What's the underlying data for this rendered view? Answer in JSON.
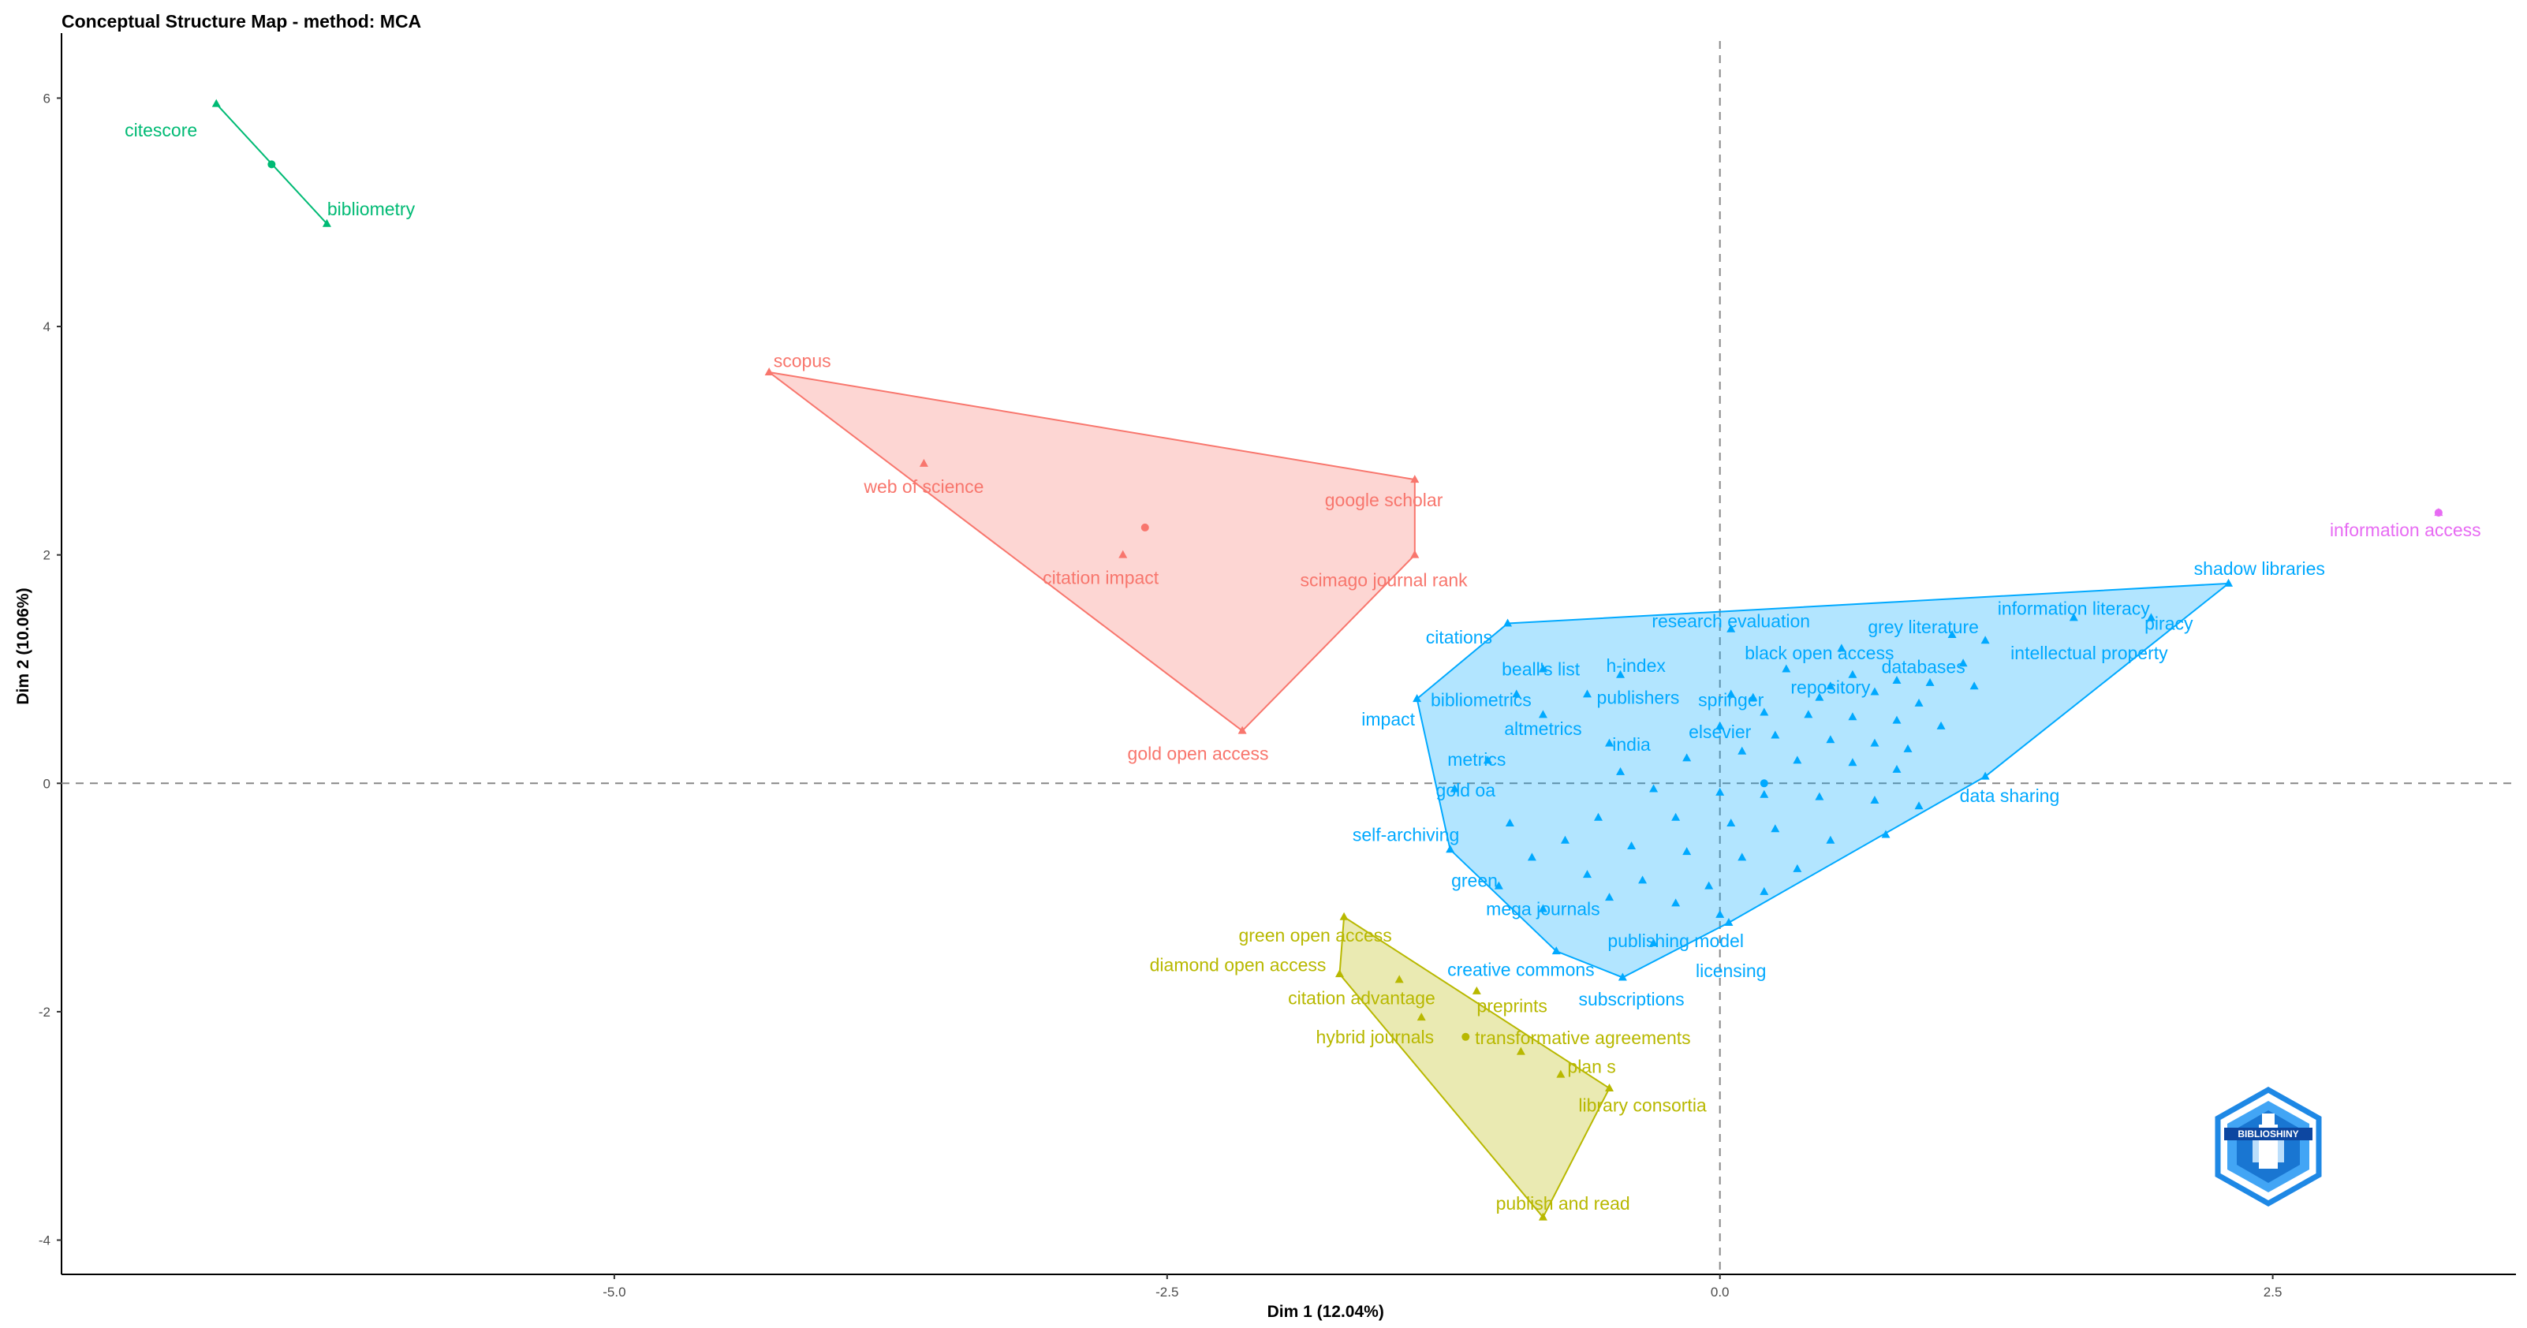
{
  "title": "Conceptual Structure Map - method: MCA",
  "chart_data": {
    "type": "scatter",
    "title": "Conceptual Structure Map - method: MCA",
    "xlabel": "Dim 1 (12.04%)",
    "ylabel": "Dim 2 (10.06%)",
    "xlim": [
      -7.5,
      3.6
    ],
    "ylim": [
      -4.3,
      6.5
    ],
    "xticks": [
      -5.0,
      -2.5,
      0.0,
      2.5
    ],
    "xtick_labels": [
      "-5.0",
      "-2.5",
      "0.0",
      "2.5"
    ],
    "yticks": [
      -4,
      -2,
      0,
      2,
      4,
      6
    ],
    "ytick_labels": [
      "-4",
      "-2",
      "0",
      "2",
      "4",
      "6"
    ],
    "reference_lines": {
      "x": 0,
      "y": 0
    },
    "grid": false,
    "legend": "none",
    "clusters": [
      {
        "color": "#00BA74",
        "fill": false,
        "hull": [
          [
            -6.8,
            5.95
          ],
          [
            -6.3,
            4.9
          ]
        ],
        "centroid": [
          -6.55,
          5.42
        ],
        "points": [
          {
            "label": "citescore",
            "x": -6.8,
            "y": 5.95,
            "lx": -7.05,
            "ly": 5.72
          },
          {
            "label": "bibliometry",
            "x": -6.3,
            "y": 4.9,
            "lx": -6.1,
            "ly": 5.03
          }
        ]
      },
      {
        "color": "#F8766D",
        "fill": true,
        "hull": [
          [
            -4.3,
            3.6
          ],
          [
            -1.38,
            2.66
          ],
          [
            -1.38,
            2.0
          ],
          [
            -2.16,
            0.46
          ]
        ],
        "centroid": [
          -2.6,
          2.24
        ],
        "points": [
          {
            "label": "scopus",
            "x": -4.3,
            "y": 3.6,
            "lx": -4.15,
            "ly": 3.7
          },
          {
            "label": "web of science",
            "x": -3.6,
            "y": 2.8,
            "lx": -3.6,
            "ly": 2.6
          },
          {
            "label": "google scholar",
            "x": -1.38,
            "y": 2.66,
            "lx": -1.52,
            "ly": 2.48
          },
          {
            "label": "citation impact",
            "x": -2.7,
            "y": 2.0,
            "lx": -2.8,
            "ly": 1.8
          },
          {
            "label": "scimago journal rank",
            "x": -1.38,
            "y": 2.0,
            "lx": -1.52,
            "ly": 1.78
          },
          {
            "label": "gold open access",
            "x": -2.16,
            "y": 0.46,
            "lx": -2.36,
            "ly": 0.26
          }
        ]
      },
      {
        "color": "#00A9FF",
        "fill": true,
        "hull": [
          [
            -0.96,
            1.4
          ],
          [
            2.3,
            1.75
          ],
          [
            1.2,
            0.06
          ],
          [
            0.04,
            -1.22
          ],
          [
            -0.44,
            -1.7
          ],
          [
            -0.74,
            -1.47
          ],
          [
            -1.22,
            -0.58
          ],
          [
            -1.37,
            0.74
          ]
        ],
        "centroid": [
          0.2,
          0.0
        ],
        "points": [
          {
            "label": "shadow libraries",
            "x": 2.3,
            "y": 1.75,
            "lx": 2.44,
            "ly": 1.88
          },
          {
            "label": "information literacy",
            "x": 1.6,
            "y": 1.45,
            "lx": 1.6,
            "ly": 1.53
          },
          {
            "label": "piracy",
            "x": 1.95,
            "y": 1.45,
            "lx": 2.03,
            "ly": 1.4
          },
          {
            "label": "grey literature",
            "x": 1.05,
            "y": 1.3,
            "lx": 0.92,
            "ly": 1.37
          },
          {
            "label": "intellectual property",
            "x": 1.2,
            "y": 1.25,
            "lx": 1.67,
            "ly": 1.14
          },
          {
            "label": "research evaluation",
            "x": 0.05,
            "y": 1.35,
            "lx": 0.05,
            "ly": 1.42
          },
          {
            "label": "black open access",
            "x": 0.55,
            "y": 1.18,
            "lx": 0.45,
            "ly": 1.14
          },
          {
            "label": "databases",
            "x": 1.1,
            "y": 1.05,
            "lx": 0.92,
            "ly": 1.02
          },
          {
            "label": "citations",
            "x": -0.96,
            "y": 1.4,
            "lx": -1.18,
            "ly": 1.28
          },
          {
            "label": "beall's list",
            "x": -0.8,
            "y": 1.0,
            "lx": -0.81,
            "ly": 1.0
          },
          {
            "label": "h-index",
            "x": -0.45,
            "y": 0.95,
            "lx": -0.38,
            "ly": 1.03
          },
          {
            "label": "repository",
            "x": 0.5,
            "y": 0.85,
            "lx": 0.5,
            "ly": 0.84
          },
          {
            "label": "bibliometrics",
            "x": -0.92,
            "y": 0.78,
            "lx": -1.08,
            "ly": 0.73
          },
          {
            "label": "publishers",
            "x": -0.6,
            "y": 0.78,
            "lx": -0.37,
            "ly": 0.75
          },
          {
            "label": "springer",
            "x": 0.05,
            "y": 0.78,
            "lx": 0.05,
            "ly": 0.73
          },
          {
            "label": "impact",
            "x": -1.37,
            "y": 0.74,
            "lx": -1.5,
            "ly": 0.56
          },
          {
            "label": "altmetrics",
            "x": -0.8,
            "y": 0.6,
            "lx": -0.8,
            "ly": 0.48
          },
          {
            "label": "elsevier",
            "x": 0.0,
            "y": 0.5,
            "lx": 0.0,
            "ly": 0.45
          },
          {
            "label": "india",
            "x": -0.5,
            "y": 0.35,
            "lx": -0.4,
            "ly": 0.34
          },
          {
            "label": "metrics",
            "x": -1.05,
            "y": 0.2,
            "lx": -1.1,
            "ly": 0.21
          },
          {
            "label": "data sharing",
            "x": 1.2,
            "y": 0.06,
            "lx": 1.31,
            "ly": -0.11
          },
          {
            "label": "gold oa",
            "x": -1.2,
            "y": -0.05,
            "lx": -1.15,
            "ly": -0.06
          },
          {
            "label": "self-archiving",
            "x": -1.22,
            "y": -0.58,
            "lx": -1.42,
            "ly": -0.45
          },
          {
            "label": "green",
            "x": -1.0,
            "y": -0.9,
            "lx": -1.11,
            "ly": -0.85
          },
          {
            "label": "mega journals",
            "x": -0.8,
            "y": -1.1,
            "lx": -0.8,
            "ly": -1.1
          },
          {
            "label": "publishing model",
            "x": -0.3,
            "y": -1.4,
            "lx": -0.2,
            "ly": -1.38
          },
          {
            "label": "creative commons",
            "x": -0.74,
            "y": -1.47,
            "lx": -0.9,
            "ly": -1.63
          },
          {
            "label": "licensing",
            "x": 0.04,
            "y": -1.22,
            "lx": 0.05,
            "ly": -1.64
          },
          {
            "label": "subscriptions",
            "x": -0.44,
            "y": -1.7,
            "lx": -0.4,
            "ly": -1.89
          }
        ],
        "unlabeled_points": [
          [
            0.3,
            1.0
          ],
          [
            0.6,
            0.95
          ],
          [
            0.8,
            0.9
          ],
          [
            0.95,
            0.88
          ],
          [
            1.15,
            0.85
          ],
          [
            0.45,
            0.75
          ],
          [
            0.7,
            0.8
          ],
          [
            0.9,
            0.7
          ],
          [
            0.2,
            0.62
          ],
          [
            0.4,
            0.6
          ],
          [
            0.6,
            0.58
          ],
          [
            0.8,
            0.55
          ],
          [
            1.0,
            0.5
          ],
          [
            0.25,
            0.42
          ],
          [
            0.5,
            0.38
          ],
          [
            0.7,
            0.35
          ],
          [
            0.85,
            0.3
          ],
          [
            0.1,
            0.28
          ],
          [
            0.35,
            0.2
          ],
          [
            0.6,
            0.18
          ],
          [
            0.8,
            0.12
          ],
          [
            -0.15,
            0.22
          ],
          [
            -0.45,
            0.1
          ],
          [
            -0.3,
            -0.05
          ],
          [
            0.0,
            -0.08
          ],
          [
            0.2,
            -0.1
          ],
          [
            0.45,
            -0.12
          ],
          [
            0.7,
            -0.15
          ],
          [
            0.9,
            -0.2
          ],
          [
            -0.55,
            -0.3
          ],
          [
            -0.2,
            -0.3
          ],
          [
            0.05,
            -0.35
          ],
          [
            0.25,
            -0.4
          ],
          [
            0.5,
            -0.5
          ],
          [
            0.75,
            -0.45
          ],
          [
            -0.7,
            -0.5
          ],
          [
            -0.4,
            -0.55
          ],
          [
            -0.15,
            -0.6
          ],
          [
            0.1,
            -0.65
          ],
          [
            0.35,
            -0.75
          ],
          [
            -0.6,
            -0.8
          ],
          [
            -0.35,
            -0.85
          ],
          [
            -0.05,
            -0.9
          ],
          [
            0.2,
            -0.95
          ],
          [
            -0.5,
            -1.0
          ],
          [
            -0.2,
            -1.05
          ],
          [
            0.0,
            -1.15
          ],
          [
            -0.85,
            -0.65
          ],
          [
            -0.95,
            -0.35
          ],
          [
            0.15,
            0.75
          ]
        ]
      },
      {
        "color": "#B8B800",
        "fill": true,
        "hull": [
          [
            -1.7,
            -1.17
          ],
          [
            -1.72,
            -1.67
          ],
          [
            -0.8,
            -3.8
          ],
          [
            -0.5,
            -2.67
          ]
        ],
        "centroid": [
          -1.15,
          -2.22
        ],
        "points": [
          {
            "label": "green open access",
            "x": -1.7,
            "y": -1.17,
            "lx": -1.83,
            "ly": -1.33
          },
          {
            "label": "diamond open access",
            "x": -1.72,
            "y": -1.67,
            "lx": -2.18,
            "ly": -1.59
          },
          {
            "label": "citation advantage",
            "x": -1.45,
            "y": -1.72,
            "lx": -1.62,
            "ly": -1.88
          },
          {
            "label": "preprints",
            "x": -1.1,
            "y": -1.82,
            "lx": -0.94,
            "ly": -1.95
          },
          {
            "label": "hybrid journals",
            "x": -1.35,
            "y": -2.05,
            "lx": -1.56,
            "ly": -2.22
          },
          {
            "label": "transformative agreements",
            "x": -0.9,
            "y": -2.35,
            "lx": -0.62,
            "ly": -2.23
          },
          {
            "label": "plan s",
            "x": -0.72,
            "y": -2.55,
            "lx": -0.58,
            "ly": -2.48
          },
          {
            "label": "library consortia",
            "x": -0.5,
            "y": -2.67,
            "lx": -0.35,
            "ly": -2.82
          },
          {
            "label": "publish and read",
            "x": -0.8,
            "y": -3.8,
            "lx": -0.71,
            "ly": -3.68
          }
        ]
      },
      {
        "color": "#E76BF3",
        "fill": false,
        "hull": [],
        "centroid": [
          3.25,
          2.37
        ],
        "points": [
          {
            "label": "information access",
            "x": 3.25,
            "y": 2.37,
            "lx": 3.1,
            "ly": 2.22
          }
        ]
      }
    ]
  },
  "watermark": {
    "text": "BIBLIOSHINY",
    "color": "#1E88E5"
  }
}
